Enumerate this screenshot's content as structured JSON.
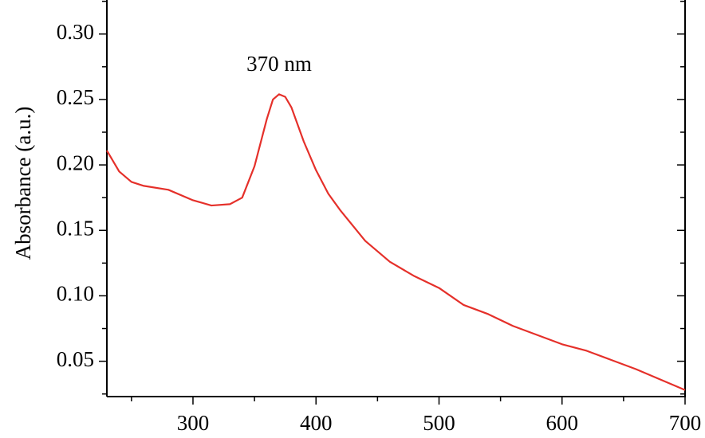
{
  "chart_data": {
    "type": "line",
    "y_label": "Absorbance (a.u.)",
    "annotation": "370 nm",
    "x": [
      230,
      240,
      250,
      260,
      280,
      300,
      315,
      330,
      340,
      350,
      360,
      365,
      370,
      375,
      380,
      390,
      400,
      410,
      420,
      440,
      460,
      480,
      500,
      520,
      540,
      560,
      580,
      600,
      620,
      640,
      660,
      680,
      700
    ],
    "series": [
      {
        "color": "#e5302a",
        "values": [
          0.211,
          0.195,
          0.187,
          0.184,
          0.181,
          0.173,
          0.169,
          0.17,
          0.175,
          0.199,
          0.235,
          0.25,
          0.254,
          0.252,
          0.244,
          0.218,
          0.196,
          0.178,
          0.165,
          0.142,
          0.126,
          0.115,
          0.106,
          0.093,
          0.086,
          0.077,
          0.07,
          0.063,
          0.058,
          0.051,
          0.044,
          0.036,
          0.028
        ]
      }
    ],
    "xlim": [
      230,
      700
    ],
    "ylim": [
      0.023,
      0.326
    ],
    "xticks": [
      300,
      400,
      500,
      600,
      700
    ],
    "xminorticks": [
      250,
      350,
      450,
      550,
      650
    ],
    "yticks": [
      {
        "value": 0.05,
        "label": "0.05"
      },
      {
        "value": 0.1,
        "label": "0.10"
      },
      {
        "value": 0.15,
        "label": "0.15"
      },
      {
        "value": 0.2,
        "label": "0.20"
      },
      {
        "value": 0.25,
        "label": "0.25"
      },
      {
        "value": 0.3,
        "label": "0.30"
      }
    ],
    "yminorticks": [
      0.025,
      0.075,
      0.125,
      0.175,
      0.225,
      0.275,
      0.325
    ]
  }
}
